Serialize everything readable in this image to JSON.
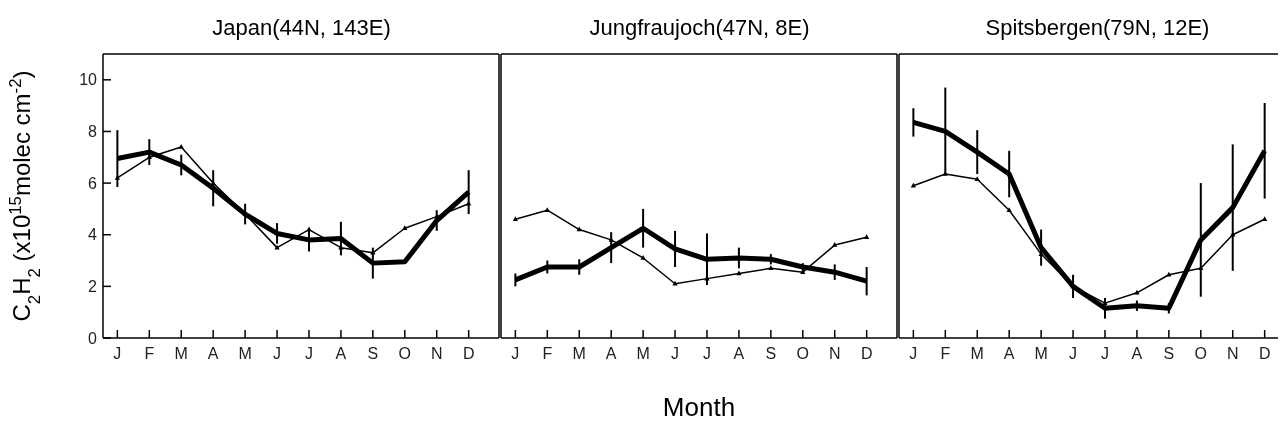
{
  "chart_data": [
    {
      "type": "line",
      "title": "Japan(44N, 143E)",
      "ylabel": "C$_{2}$H$_{2}$ (x10$^{15}$molec cm$^{-2}$)",
      "categories": [
        "J",
        "F",
        "M",
        "A",
        "M",
        "J",
        "J",
        "A",
        "S",
        "O",
        "N",
        "D"
      ],
      "ylim": [
        0,
        11
      ],
      "yticks": [
        0,
        2,
        4,
        6,
        8,
        10
      ],
      "grid": false,
      "legend": false,
      "series": [
        {
          "color": "#000000",
          "values": [
            6.95,
            7.2,
            6.7,
            5.8,
            4.8,
            4.05,
            3.8,
            3.85,
            2.9,
            2.95,
            4.55,
            5.65
          ],
          "errors": [
            1.1,
            0.5,
            0.4,
            0.7,
            0.4,
            0.4,
            0.45,
            0.65,
            0.6,
            null,
            0.4,
            0.85
          ]
        },
        {
          "color": "#000000",
          "marker": "triangle",
          "values": [
            6.2,
            7.0,
            7.4,
            6.0,
            4.8,
            3.5,
            4.2,
            3.5,
            3.3,
            4.25,
            4.7,
            5.2
          ]
        }
      ]
    },
    {
      "type": "line",
      "title": "Jungfraujoch(47N, 8E)",
      "xlabel": "Month",
      "categories": [
        "J",
        "F",
        "M",
        "A",
        "M",
        "J",
        "J",
        "A",
        "S",
        "O",
        "N",
        "D"
      ],
      "ylim": [
        0,
        11
      ],
      "yticks": [
        0,
        2,
        4,
        6,
        8,
        10
      ],
      "tick_labels": "x",
      "grid": false,
      "legend": false,
      "series": [
        {
          "color": "#000000",
          "values": [
            2.25,
            2.75,
            2.75,
            3.5,
            4.25,
            3.45,
            3.05,
            3.1,
            3.05,
            2.75,
            2.55,
            2.2
          ],
          "errors": [
            0.25,
            0.25,
            0.3,
            0.6,
            0.75,
            0.7,
            1.0,
            0.4,
            0.2,
            0.15,
            0.3,
            0.55
          ]
        },
        {
          "color": "#000000",
          "marker": "triangle",
          "values": [
            4.6,
            4.95,
            4.2,
            3.8,
            3.1,
            2.1,
            2.3,
            2.5,
            2.7,
            2.55,
            3.6,
            3.9
          ]
        }
      ]
    },
    {
      "type": "line",
      "title": "Spitsbergen(79N, 12E)",
      "categories": [
        "J",
        "F",
        "M",
        "A",
        "M",
        "J",
        "J",
        "A",
        "S",
        "O",
        "N",
        "D"
      ],
      "ylim": [
        0,
        11
      ],
      "yticks": [
        0,
        2,
        4,
        6,
        8,
        10
      ],
      "tick_labels": "x",
      "grid": false,
      "legend": false,
      "series": [
        {
          "color": "#000000",
          "values": [
            8.35,
            8.0,
            7.2,
            6.35,
            3.5,
            2.0,
            1.15,
            1.25,
            1.15,
            3.8,
            5.05,
            7.25
          ],
          "errors": [
            0.55,
            1.7,
            0.85,
            0.9,
            0.7,
            0.45,
            0.4,
            0.2,
            0.2,
            2.2,
            2.45,
            1.85
          ]
        },
        {
          "color": "#000000",
          "marker": "triangle",
          "values": [
            5.9,
            6.35,
            6.15,
            4.95,
            3.25,
            2.0,
            1.35,
            1.75,
            2.45,
            2.7,
            4.0,
            4.6
          ]
        }
      ]
    }
  ]
}
